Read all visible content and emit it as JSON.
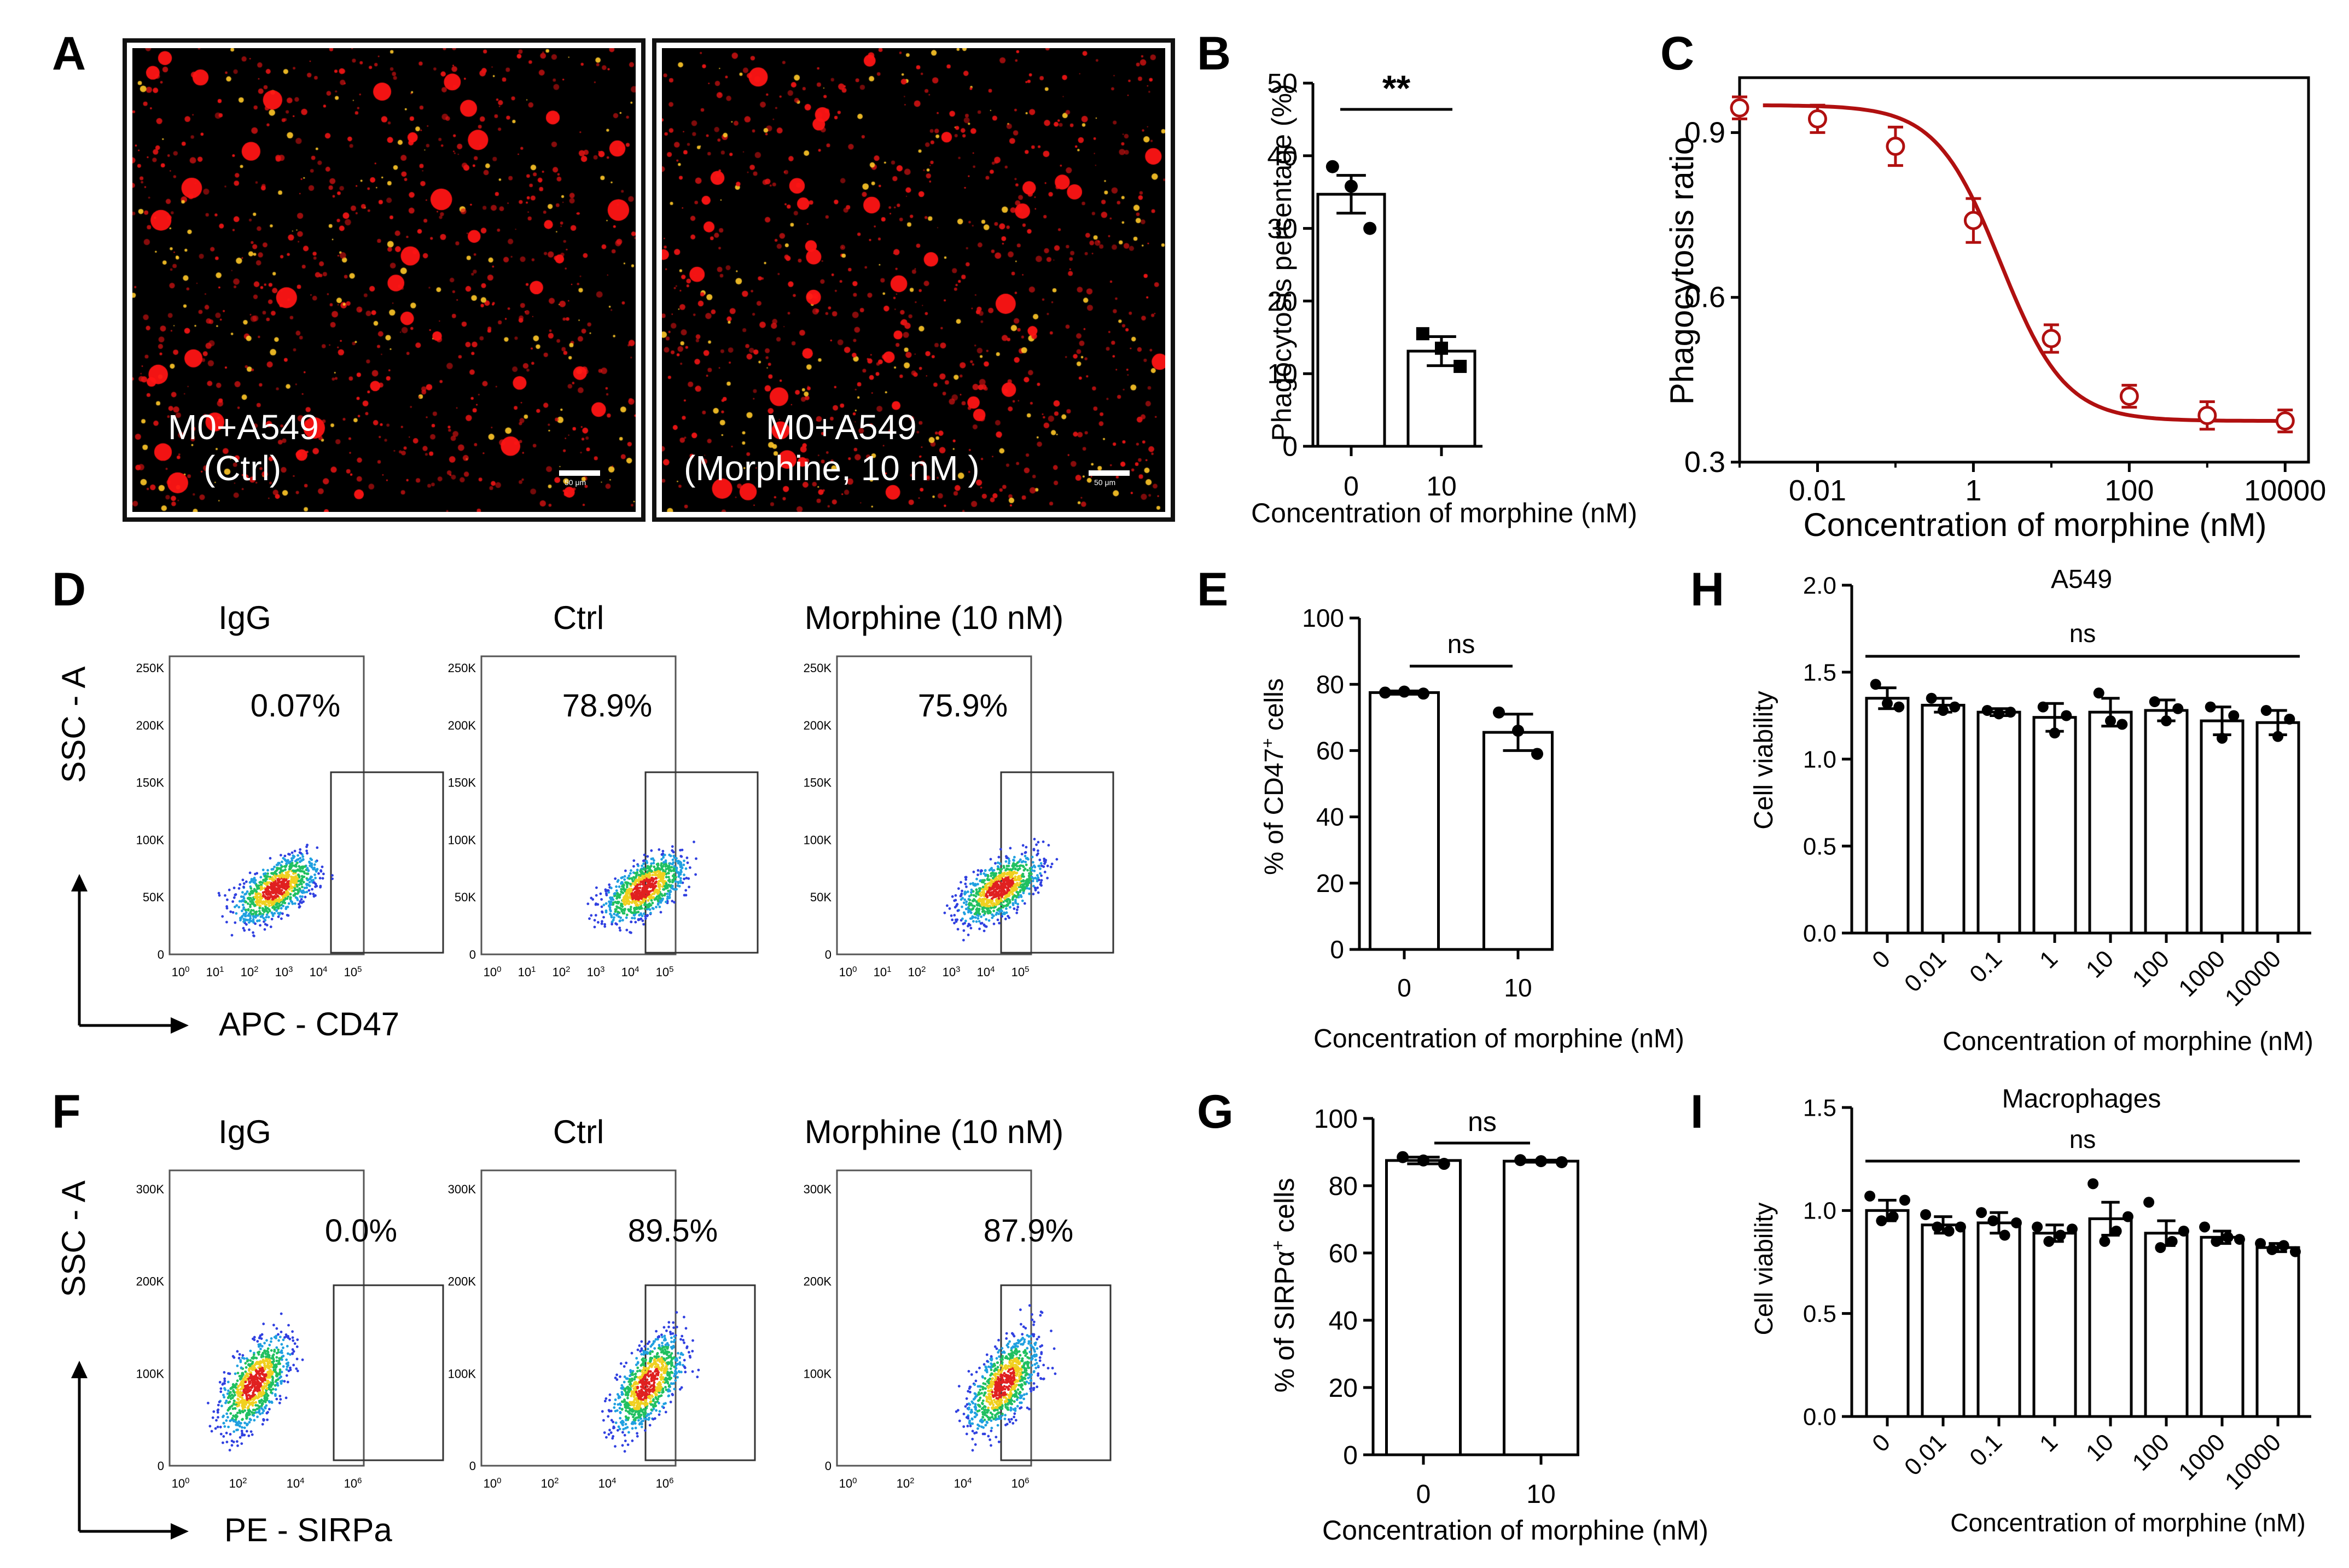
{
  "letters": {
    "A": "A",
    "B": "B",
    "C": "C",
    "D": "D",
    "E": "E",
    "H": "H",
    "F": "F",
    "G": "G",
    "I": "I"
  },
  "panel_A": {
    "images": [
      {
        "line1": "M0+A549",
        "line2": "(Ctrl)",
        "scale": "50 μm"
      },
      {
        "line1": "M0+A549",
        "line2": "(Morphine, 10 nM )",
        "scale": "50 μm"
      }
    ]
  },
  "panel_D": {
    "titles": [
      "IgG",
      "Ctrl",
      "Morphine (10 nM)"
    ],
    "percents": [
      "0.07%",
      "78.9%",
      "75.9%"
    ],
    "yaxis": "SSC - A",
    "xaxis": "APC - CD47",
    "yticks": [
      "0",
      "50K",
      "100K",
      "150K",
      "200K",
      "250K"
    ]
  },
  "panel_F": {
    "titles": [
      "IgG",
      "Ctrl",
      "Morphine (10 nM)"
    ],
    "percents": [
      "0.0%",
      "89.5%",
      "87.9%"
    ],
    "yaxis": "SSC - A",
    "xaxis": "PE - SIRPa",
    "yticks": [
      "0",
      "100K",
      "200K",
      "300K"
    ]
  },
  "chart_data": [
    {
      "panel": "B",
      "type": "bar",
      "categories": [
        "0",
        "10"
      ],
      "values": [
        34.7,
        13.1
      ],
      "errors": [
        2.6,
        2.0
      ],
      "points": [
        [
          38.5,
          35.8,
          30.0
        ],
        [
          15.5,
          13.5,
          11.0
        ]
      ],
      "significance": "**",
      "xlabel": "Concentration of morphine (nM)",
      "ylabel": "Phagocytosis percentage (%)",
      "ylim": [
        0,
        50
      ],
      "yticks": [
        0,
        10,
        20,
        30,
        40,
        50
      ]
    },
    {
      "panel": "C",
      "type": "line",
      "xscale": "log",
      "x": [
        0.001,
        0.01,
        0.1,
        1,
        10,
        100,
        1000,
        10000
      ],
      "y": [
        0.945,
        0.925,
        0.875,
        0.74,
        0.525,
        0.42,
        0.385,
        0.375
      ],
      "errors": [
        0.02,
        0.025,
        0.035,
        0.04,
        0.025,
        0.02,
        0.025,
        0.02
      ],
      "xticks": [
        "0.01",
        "1",
        "100",
        "10000"
      ],
      "yticks": [
        "0.3",
        "0.6",
        "0.9"
      ],
      "xlabel": "Concentration of morphine (nM)",
      "ylabel": "Phagocytosis ratio",
      "ylim": [
        0.3,
        1.0
      ],
      "color": "#b01010"
    },
    {
      "panel": "E",
      "type": "bar",
      "categories": [
        "0",
        "10"
      ],
      "values": [
        77.5,
        65.5
      ],
      "errors": [
        0.5,
        5.5
      ],
      "points": [
        [
          77.5,
          77.8,
          77.2
        ],
        [
          71.5,
          66.0,
          59.0
        ]
      ],
      "significance": "ns",
      "xlabel": "Concentration of morphine (nM)",
      "ylabel": "% of CD47+ cells",
      "ylim": [
        0,
        100
      ],
      "yticks": [
        0,
        20,
        40,
        60,
        80,
        100
      ]
    },
    {
      "panel": "G",
      "type": "bar",
      "categories": [
        "0",
        "10"
      ],
      "values": [
        87.5,
        87.3
      ],
      "errors": [
        1.0,
        0.3
      ],
      "points": [
        [
          88.5,
          87.5,
          86.5
        ],
        [
          87.6,
          87.3,
          87.0
        ]
      ],
      "significance": "ns",
      "xlabel": "Concentration of morphine (nM)",
      "ylabel": "% of SIRPα+ cells",
      "ylim": [
        0,
        100
      ],
      "yticks": [
        0,
        20,
        40,
        60,
        80,
        100
      ]
    },
    {
      "panel": "H",
      "type": "bar",
      "title": "A549",
      "significance": "ns",
      "categories": [
        "0",
        "0.01",
        "0.1",
        "1",
        "10",
        "100",
        "1000",
        "10000"
      ],
      "values": [
        1.35,
        1.31,
        1.27,
        1.24,
        1.27,
        1.28,
        1.22,
        1.21
      ],
      "errors": [
        0.06,
        0.04,
        0.02,
        0.08,
        0.08,
        0.06,
        0.08,
        0.07
      ],
      "points": [
        [
          1.43,
          1.32,
          1.3
        ],
        [
          1.35,
          1.28,
          1.3
        ],
        [
          1.28,
          1.26,
          1.27
        ],
        [
          1.3,
          1.15,
          1.25
        ],
        [
          1.38,
          1.22,
          1.2
        ],
        [
          1.33,
          1.22,
          1.29
        ],
        [
          1.3,
          1.12,
          1.25
        ],
        [
          1.28,
          1.13,
          1.23
        ]
      ],
      "xlabel": "Concentration of morphine (nM)",
      "ylabel": "Cell viability",
      "ylim": [
        0,
        2.0
      ],
      "yticks": [
        "0.0",
        "0.5",
        "1.0",
        "1.5",
        "2.0"
      ]
    },
    {
      "panel": "I",
      "type": "bar",
      "title": "Macrophages",
      "significance": "ns",
      "categories": [
        "0",
        "0.01",
        "0.1",
        "1",
        "10",
        "100",
        "1000",
        "10000"
      ],
      "values": [
        1.0,
        0.93,
        0.94,
        0.89,
        0.96,
        0.89,
        0.87,
        0.82
      ],
      "errors": [
        0.05,
        0.04,
        0.05,
        0.04,
        0.08,
        0.06,
        0.03,
        0.02
      ],
      "points": [
        [
          1.07,
          0.95,
          0.97,
          1.05
        ],
        [
          0.98,
          0.92,
          0.9,
          0.92
        ],
        [
          0.99,
          0.95,
          0.88,
          0.94
        ],
        [
          0.92,
          0.85,
          0.88,
          0.91
        ],
        [
          1.13,
          0.85,
          0.9,
          0.97
        ],
        [
          1.04,
          0.82,
          0.85,
          0.9
        ],
        [
          0.92,
          0.85,
          0.87,
          0.86
        ],
        [
          0.84,
          0.81,
          0.83,
          0.8
        ]
      ],
      "xlabel": "Concentration of morphine (nM)",
      "ylabel": "Cell viability",
      "ylim": [
        0,
        1.5
      ],
      "yticks": [
        "0.0",
        "0.5",
        "1.0",
        "1.5"
      ]
    }
  ]
}
